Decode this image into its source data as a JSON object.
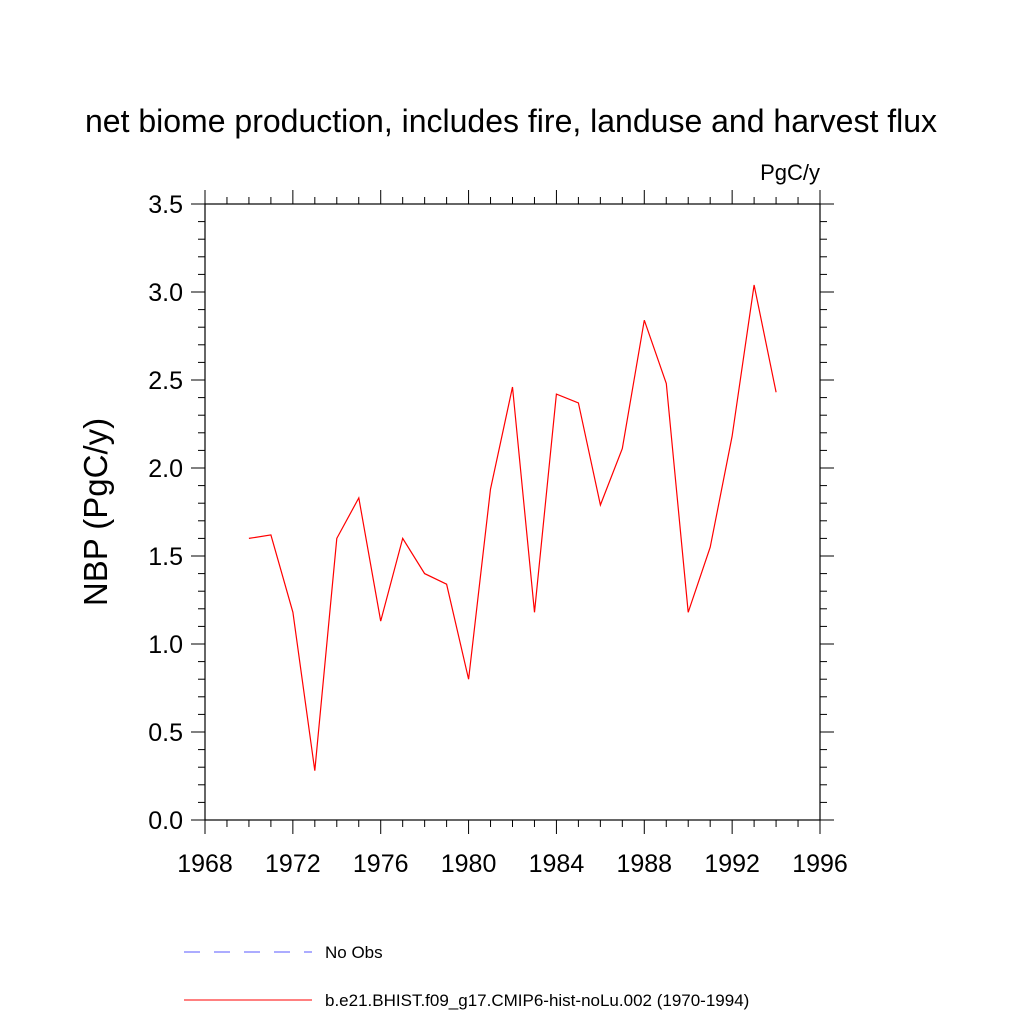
{
  "chart_data": {
    "type": "line",
    "title": "net biome production, includes fire, landuse and harvest flux",
    "units": "PgC/y",
    "ylabel": "NBP  (PgC/y)",
    "xlabel": "",
    "xlim": [
      1968,
      1996
    ],
    "ylim": [
      0.0,
      3.5
    ],
    "x_ticks": [
      1968,
      1972,
      1976,
      1980,
      1984,
      1988,
      1992,
      1996
    ],
    "x_tick_labels": [
      "1968",
      "1972",
      "1976",
      "1980",
      "1984",
      "1988",
      "1992",
      "1996"
    ],
    "y_ticks": [
      0.0,
      0.5,
      1.0,
      1.5,
      2.0,
      2.5,
      3.0,
      3.5
    ],
    "y_tick_labels": [
      "0.0",
      "0.5",
      "1.0",
      "1.5",
      "2.0",
      "2.5",
      "3.0",
      "3.5"
    ],
    "grid": false,
    "legend_position": "bottom",
    "series": [
      {
        "name": "b.e21.BHIST.f09_g17.CMIP6-hist-noLu.002 (1970-1994)",
        "color": "#ff0000",
        "style": "solid",
        "x": [
          1970,
          1971,
          1972,
          1973,
          1974,
          1975,
          1976,
          1977,
          1978,
          1979,
          1980,
          1981,
          1982,
          1983,
          1984,
          1985,
          1986,
          1987,
          1988,
          1989,
          1990,
          1991,
          1992,
          1993,
          1994
        ],
        "y": [
          1.6,
          1.62,
          1.18,
          0.28,
          1.6,
          1.83,
          1.13,
          1.6,
          1.4,
          1.34,
          0.8,
          1.88,
          2.46,
          1.18,
          2.42,
          2.37,
          1.79,
          2.11,
          2.84,
          2.48,
          1.18,
          1.55,
          2.18,
          3.04,
          2.43
        ]
      }
    ],
    "legend": [
      {
        "label": "No Obs",
        "color": "#5a5aff",
        "style": "dashed"
      },
      {
        "label": "b.e21.BHIST.f09_g17.CMIP6-hist-noLu.002 (1970-1994)",
        "color": "#ff0000",
        "style": "solid"
      }
    ]
  }
}
